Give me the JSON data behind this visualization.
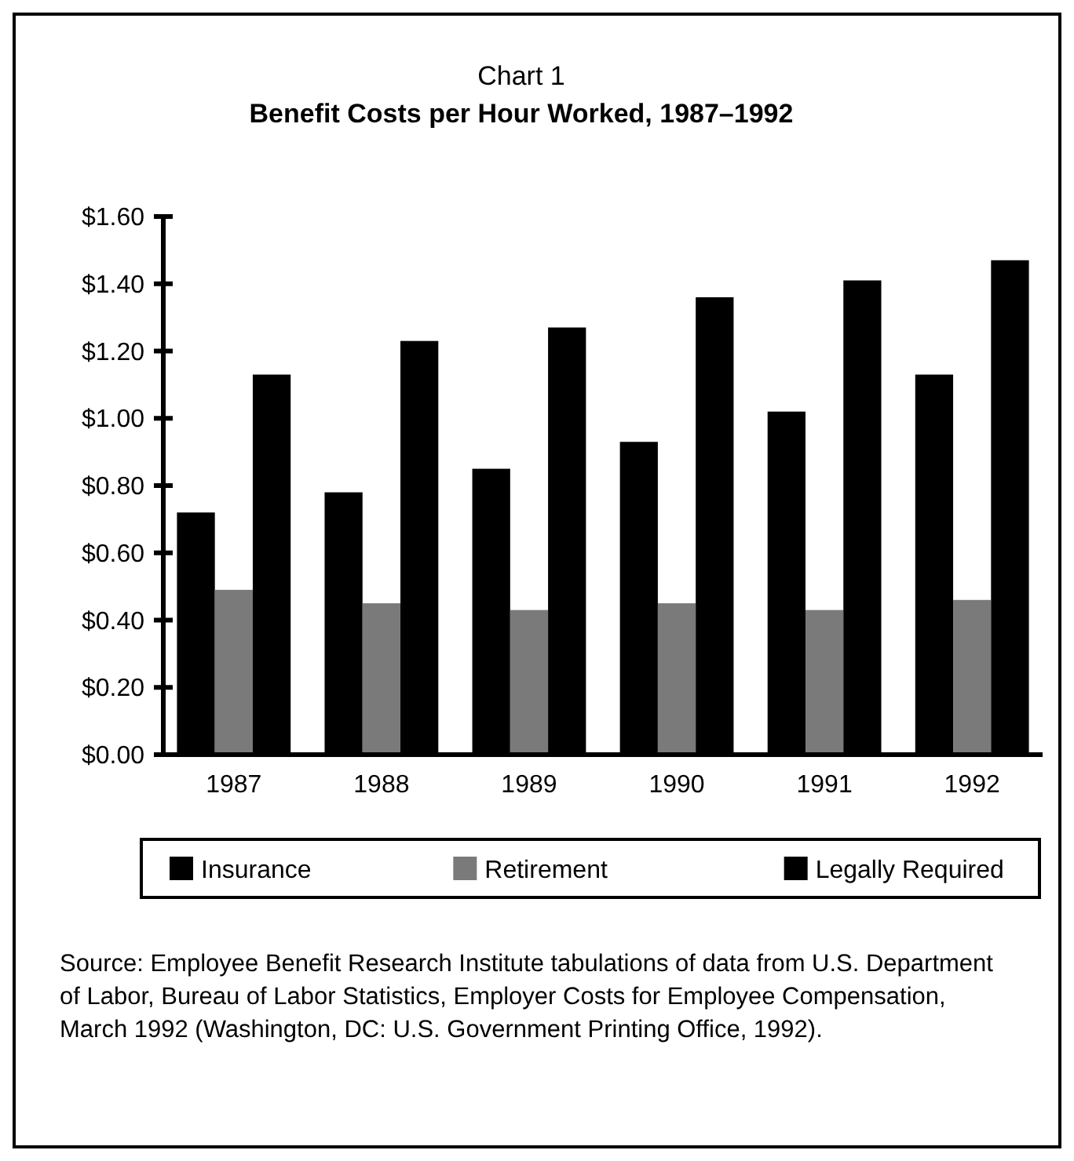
{
  "chart_data": {
    "type": "bar",
    "title": "Chart 1",
    "subtitle": "Benefit Costs per Hour Worked, 1987–1992",
    "categories": [
      "1987",
      "1988",
      "1989",
      "1990",
      "1991",
      "1992"
    ],
    "series": [
      {
        "name": "Insurance",
        "color": "#000000",
        "values": [
          0.72,
          0.78,
          0.85,
          0.93,
          1.02,
          1.13
        ]
      },
      {
        "name": "Retirement",
        "color": "#7a7a7a",
        "values": [
          0.49,
          0.45,
          0.43,
          0.45,
          0.43,
          0.46
        ]
      },
      {
        "name": "Legally Required",
        "color": "#000000",
        "values": [
          1.13,
          1.23,
          1.27,
          1.36,
          1.41,
          1.47
        ]
      }
    ],
    "ylim": [
      0,
      1.6
    ],
    "yticks": [
      {
        "value": 0,
        "label": "$0.00"
      },
      {
        "value": 0.2,
        "label": "$0.20"
      },
      {
        "value": 0.4,
        "label": "$0.40"
      },
      {
        "value": 0.6,
        "label": "$0.60"
      },
      {
        "value": 0.8,
        "label": "$0.80"
      },
      {
        "value": 1,
        "label": "$1.00"
      },
      {
        "value": 1.2,
        "label": "$1.20"
      },
      {
        "value": 1.4,
        "label": "$1.40"
      },
      {
        "value": 1.6,
        "label": "$1.60"
      }
    ],
    "grid": false,
    "legend": "bottom",
    "annotations": [
      "Source: Employee Benefit Research Institute tabulations of data from U.S. Department of Labor, Bureau of Labor Statistics, Employer Costs for Employee Compensation, March 1992 (Washington, DC: U.S. Government Printing Office, 1992)."
    ]
  }
}
